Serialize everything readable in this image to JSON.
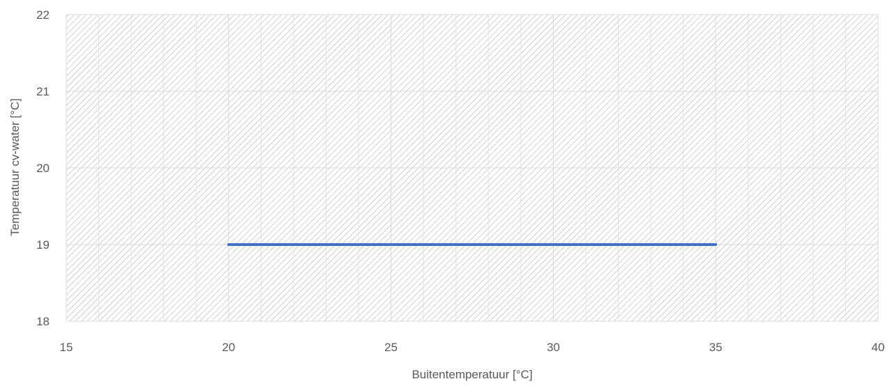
{
  "chart_data": {
    "type": "line",
    "title": "",
    "xlabel": "Buitentemperatuur [°C]",
    "ylabel": "Temperatuur cv-water [°C]",
    "xlim": [
      15,
      40
    ],
    "ylim": [
      18,
      22
    ],
    "x_ticks": [
      15,
      20,
      25,
      30,
      35,
      40
    ],
    "y_ticks": [
      18,
      19,
      20,
      21,
      22
    ],
    "x_minor_gridlines": [
      16,
      17,
      18,
      19,
      21,
      22,
      23,
      24,
      26,
      27,
      28,
      29,
      31,
      32,
      33,
      34,
      36,
      37,
      38,
      39
    ],
    "grid": true,
    "plot_background": "diagonal hatch",
    "series": [
      {
        "color": "#4472C4",
        "points": [
          {
            "x": 20,
            "y": 19
          },
          {
            "x": 35,
            "y": 19
          }
        ]
      }
    ]
  },
  "colors": {
    "series_line": "#4472C4",
    "gridline": "#d9d9d9",
    "hatch": "#cfcfcf",
    "text": "#595959"
  }
}
